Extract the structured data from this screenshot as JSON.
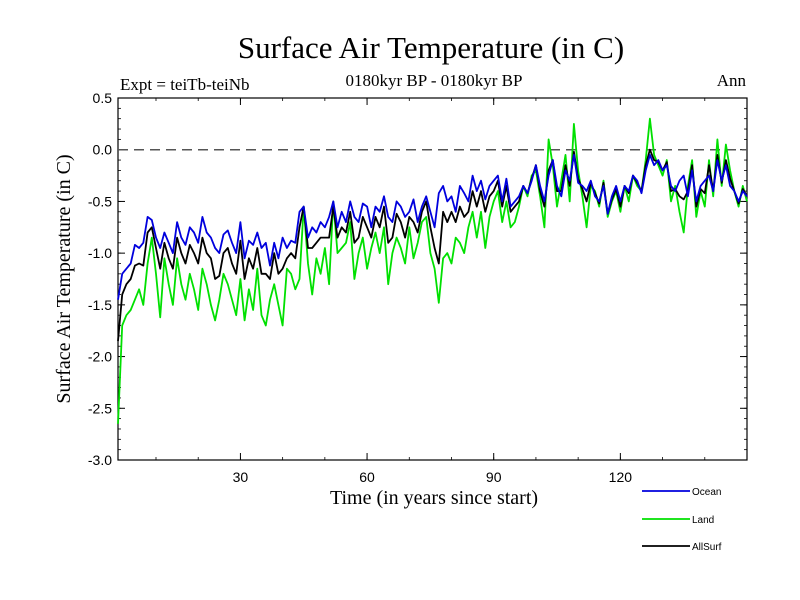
{
  "chart_data": {
    "type": "line",
    "title": "Surface Air Temperature (in C)",
    "subtitle_left": "Expt = teiTb-teiNb",
    "subtitle_center": "0180kyr BP - 0180kyr BP",
    "subtitle_right": "Ann",
    "xlabel": "Time (in years since start)",
    "ylabel": "Surface Air Temperature (in C)",
    "xlim": [
      1,
      150
    ],
    "ylim": [
      -3.0,
      0.5
    ],
    "xticks": [
      30,
      60,
      90,
      120
    ],
    "xtick_labels": [
      "30",
      "60",
      "90",
      "120"
    ],
    "yticks": [
      -3.0,
      -2.5,
      -2.0,
      -1.5,
      -1.0,
      -0.5,
      0.0,
      0.5
    ],
    "ytick_labels": [
      "-3.0",
      "-2.5",
      "-2.0",
      "-1.5",
      "-1.0",
      "-0.5",
      "0.0",
      "0.5"
    ],
    "reference_line": 0.0,
    "series": [
      {
        "name": "Ocean",
        "color": "#0000dd",
        "values": [
          -1.45,
          -1.2,
          -1.15,
          -1.1,
          -0.92,
          -0.95,
          -0.9,
          -0.65,
          -0.68,
          -0.85,
          -0.95,
          -0.8,
          -0.9,
          -1.0,
          -0.7,
          -0.85,
          -0.92,
          -0.75,
          -0.8,
          -0.9,
          -0.65,
          -0.8,
          -0.85,
          -0.95,
          -1.0,
          -0.82,
          -0.78,
          -0.9,
          -1.0,
          -0.7,
          -1.05,
          -0.88,
          -0.92,
          -0.8,
          -0.95,
          -0.9,
          -1.12,
          -0.9,
          -1.05,
          -0.85,
          -0.95,
          -0.88,
          -0.9,
          -0.6,
          -0.55,
          -0.85,
          -0.75,
          -0.8,
          -0.7,
          -0.75,
          -0.65,
          -0.5,
          -0.75,
          -0.6,
          -0.7,
          -0.5,
          -0.65,
          -0.7,
          -0.52,
          -0.55,
          -0.75,
          -0.55,
          -0.6,
          -0.45,
          -0.65,
          -0.7,
          -0.5,
          -0.55,
          -0.65,
          -0.6,
          -0.48,
          -0.7,
          -0.55,
          -0.45,
          -0.6,
          -0.75,
          -0.42,
          -0.35,
          -0.5,
          -0.45,
          -0.6,
          -0.35,
          -0.42,
          -0.5,
          -0.25,
          -0.4,
          -0.3,
          -0.48,
          -0.35,
          -0.3,
          -0.25,
          -0.5,
          -0.28,
          -0.55,
          -0.5,
          -0.45,
          -0.35,
          -0.42,
          -0.3,
          -0.15,
          -0.35,
          -0.5,
          -0.25,
          -0.1,
          -0.35,
          -0.45,
          -0.2,
          -0.3,
          -0.05,
          -0.32,
          -0.35,
          -0.4,
          -0.3,
          -0.45,
          -0.5,
          -0.35,
          -0.62,
          -0.45,
          -0.35,
          -0.5,
          -0.35,
          -0.4,
          -0.25,
          -0.3,
          -0.42,
          -0.2,
          -0.05,
          -0.15,
          -0.1,
          -0.2,
          -0.15,
          -0.35,
          -0.4,
          -0.3,
          -0.25,
          -0.45,
          -0.2,
          -0.5,
          -0.35,
          -0.3,
          -0.25,
          -0.4,
          -0.1,
          -0.3,
          -0.15,
          -0.35,
          -0.4,
          -0.5,
          -0.4,
          -0.45
        ]
      },
      {
        "name": "Land",
        "color": "#00e000",
        "values": [
          -2.65,
          -1.7,
          -1.6,
          -1.55,
          -1.45,
          -1.35,
          -1.5,
          -1.1,
          -0.85,
          -1.2,
          -1.62,
          -1.05,
          -1.3,
          -1.5,
          -1.05,
          -1.3,
          -1.45,
          -1.2,
          -1.35,
          -1.55,
          -1.15,
          -1.3,
          -1.5,
          -1.65,
          -1.45,
          -1.2,
          -1.3,
          -1.45,
          -1.6,
          -1.25,
          -1.65,
          -1.35,
          -1.55,
          -1.15,
          -1.6,
          -1.7,
          -1.45,
          -1.3,
          -1.5,
          -1.7,
          -1.15,
          -1.2,
          -1.35,
          -1.25,
          -0.55,
          -1.1,
          -1.4,
          -1.05,
          -1.2,
          -0.95,
          -1.3,
          -0.5,
          -1.0,
          -0.95,
          -0.9,
          -0.7,
          -1.25,
          -1.0,
          -0.85,
          -1.15,
          -0.95,
          -0.8,
          -1.0,
          -0.75,
          -1.3,
          -1.0,
          -0.85,
          -0.95,
          -1.1,
          -0.75,
          -1.05,
          -0.9,
          -0.7,
          -0.65,
          -1.0,
          -1.15,
          -1.48,
          -1.05,
          -1.0,
          -1.1,
          -0.85,
          -0.9,
          -1.0,
          -0.75,
          -0.6,
          -0.85,
          -0.6,
          -0.95,
          -0.65,
          -0.5,
          -0.4,
          -0.7,
          -0.5,
          -0.75,
          -0.7,
          -0.55,
          -0.35,
          -0.45,
          -0.25,
          -0.2,
          -0.45,
          -0.75,
          0.1,
          -0.15,
          -0.55,
          -0.3,
          -0.05,
          -0.5,
          0.25,
          -0.2,
          -0.45,
          -0.75,
          -0.35,
          -0.4,
          -0.55,
          -0.3,
          -0.65,
          -0.5,
          -0.4,
          -0.6,
          -0.35,
          -0.5,
          -0.25,
          -0.35,
          -0.4,
          -0.1,
          0.3,
          -0.05,
          -0.15,
          -0.25,
          -0.1,
          -0.5,
          -0.35,
          -0.6,
          -0.8,
          -0.35,
          -0.1,
          -0.65,
          -0.4,
          -0.55,
          -0.1,
          -0.45,
          0.1,
          -0.35,
          0.05,
          -0.2,
          -0.4,
          -0.55,
          -0.35,
          -0.5
        ]
      },
      {
        "name": "AllSurf",
        "color": "#000000",
        "values": [
          -1.85,
          -1.4,
          -1.3,
          -1.25,
          -1.12,
          -1.1,
          -1.12,
          -0.8,
          -0.75,
          -0.95,
          -1.15,
          -0.9,
          -1.05,
          -1.15,
          -0.85,
          -1.0,
          -1.1,
          -0.92,
          -1.0,
          -1.1,
          -0.85,
          -1.0,
          -1.05,
          -1.25,
          -1.22,
          -1.0,
          -0.95,
          -1.1,
          -1.2,
          -0.88,
          -1.25,
          -1.05,
          -1.15,
          -0.95,
          -1.2,
          -1.2,
          -1.25,
          -1.0,
          -1.2,
          -1.15,
          -1.05,
          -1.0,
          -1.05,
          -0.75,
          -0.55,
          -0.95,
          -0.95,
          -0.9,
          -0.85,
          -0.85,
          -0.85,
          -0.55,
          -0.85,
          -0.75,
          -0.8,
          -0.6,
          -0.9,
          -0.85,
          -0.65,
          -0.75,
          -0.85,
          -0.65,
          -0.75,
          -0.55,
          -0.9,
          -0.85,
          -0.62,
          -0.7,
          -0.85,
          -0.65,
          -0.7,
          -0.8,
          -0.6,
          -0.5,
          -0.75,
          -0.95,
          -1.1,
          -0.6,
          -0.7,
          -0.6,
          -0.7,
          -0.55,
          -0.65,
          -0.6,
          -0.4,
          -0.55,
          -0.4,
          -0.6,
          -0.45,
          -0.4,
          -0.3,
          -0.55,
          -0.35,
          -0.6,
          -0.55,
          -0.5,
          -0.35,
          -0.42,
          -0.28,
          -0.15,
          -0.4,
          -0.55,
          -0.2,
          -0.1,
          -0.4,
          -0.4,
          -0.15,
          -0.35,
          -0.02,
          -0.28,
          -0.38,
          -0.5,
          -0.32,
          -0.42,
          -0.52,
          -0.32,
          -0.62,
          -0.48,
          -0.38,
          -0.55,
          -0.35,
          -0.42,
          -0.25,
          -0.32,
          -0.4,
          -0.15,
          0.0,
          -0.1,
          -0.12,
          -0.2,
          -0.12,
          -0.4,
          -0.38,
          -0.45,
          -0.48,
          -0.4,
          -0.15,
          -0.55,
          -0.38,
          -0.42,
          -0.15,
          -0.4,
          -0.05,
          -0.32,
          -0.1,
          -0.28,
          -0.4,
          -0.52,
          -0.38,
          -0.45
        ]
      }
    ],
    "legend": [
      {
        "name": "Ocean",
        "color": "#0000dd"
      },
      {
        "name": "Land",
        "color": "#00e000"
      },
      {
        "name": "AllSurf",
        "color": "#000000"
      }
    ]
  }
}
